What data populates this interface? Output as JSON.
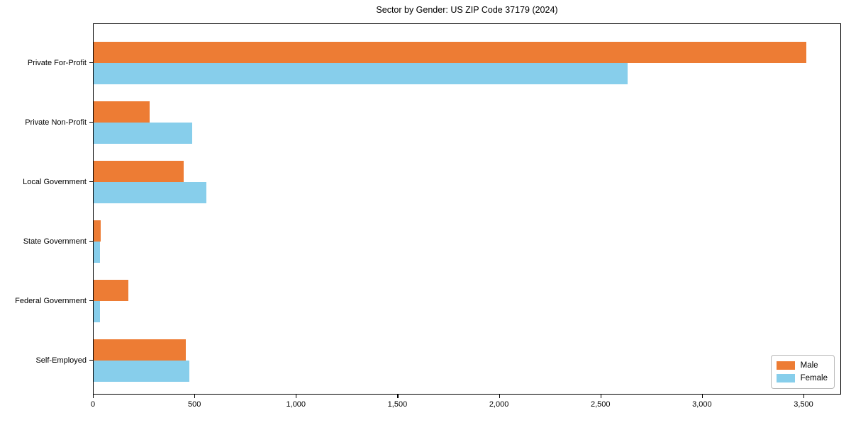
{
  "figure": {
    "title": "Sector by Gender: US ZIP Code 37179 (2024)"
  },
  "chart_data": {
    "type": "bar",
    "orientation": "horizontal",
    "title": "Sector by Gender: US ZIP Code 37179 (2024)",
    "categories": [
      "Private For-Profit",
      "Private Non-Profit",
      "Local Government",
      "State Government",
      "Federal Government",
      "Self-Employed"
    ],
    "series": [
      {
        "name": "Male",
        "color": "#ed7c34",
        "values": [
          3510,
          275,
          445,
          35,
          170,
          455
        ]
      },
      {
        "name": "Female",
        "color": "#87ceeb",
        "values": [
          2630,
          485,
          555,
          30,
          30,
          470
        ]
      }
    ],
    "xlabel": "",
    "ylabel": "",
    "xlim": [
      0,
      3685
    ],
    "x_tick_values": [
      0,
      500,
      1000,
      1500,
      2000,
      2500,
      3000,
      3500
    ],
    "x_tick_labels": [
      "0",
      "500",
      "1,000",
      "1,500",
      "2,000",
      "2,500",
      "3,000",
      "3,500"
    ],
    "grid": false,
    "legend": {
      "position": "lower-right",
      "entries": [
        "Male",
        "Female"
      ]
    }
  }
}
